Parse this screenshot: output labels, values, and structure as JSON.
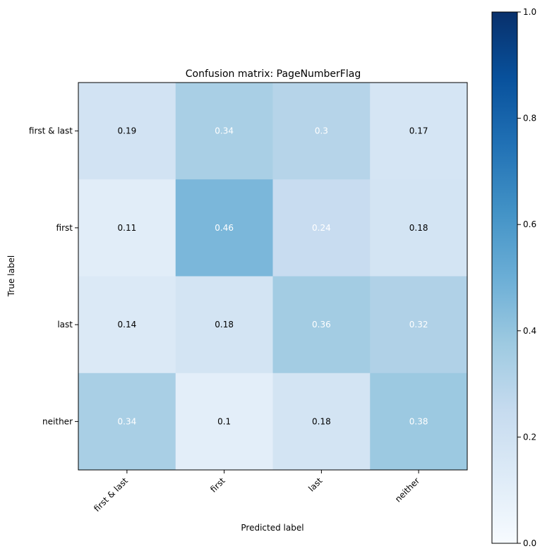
{
  "chart_data": {
    "type": "heatmap",
    "title": "Confusion matrix: PageNumberFlag",
    "xlabel": "Predicted label",
    "ylabel": "True label",
    "x_categories": [
      "first & last",
      "first",
      "last",
      "neither"
    ],
    "y_categories": [
      "first & last",
      "first",
      "last",
      "neither"
    ],
    "values": [
      [
        0.19,
        0.34,
        0.3,
        0.17
      ],
      [
        0.11,
        0.46,
        0.24,
        0.18
      ],
      [
        0.14,
        0.18,
        0.36,
        0.32
      ],
      [
        0.34,
        0.1,
        0.18,
        0.38
      ]
    ],
    "value_labels": [
      [
        "0.19",
        "0.34",
        "0.3",
        "0.17"
      ],
      [
        "0.11",
        "0.46",
        "0.24",
        "0.18"
      ],
      [
        "0.14",
        "0.18",
        "0.36",
        "0.32"
      ],
      [
        "0.34",
        "0.1",
        "0.18",
        "0.38"
      ]
    ],
    "text_color_light": [
      "0.34",
      "0.3",
      "0.46",
      "0.24",
      "0.36",
      "0.32",
      "0.34",
      "0.38"
    ],
    "colormap": "Blues",
    "colorbar": {
      "range": [
        0.0,
        1.0
      ],
      "ticks": [
        0.0,
        0.2,
        0.4,
        0.6,
        0.8,
        1.0
      ],
      "tick_labels": [
        "0.0",
        "0.2",
        "0.4",
        "0.6",
        "0.8",
        "1.0"
      ]
    },
    "colors": {
      "text_dark": "#000000",
      "text_light": "#ffffff",
      "axis": "#000000"
    }
  }
}
